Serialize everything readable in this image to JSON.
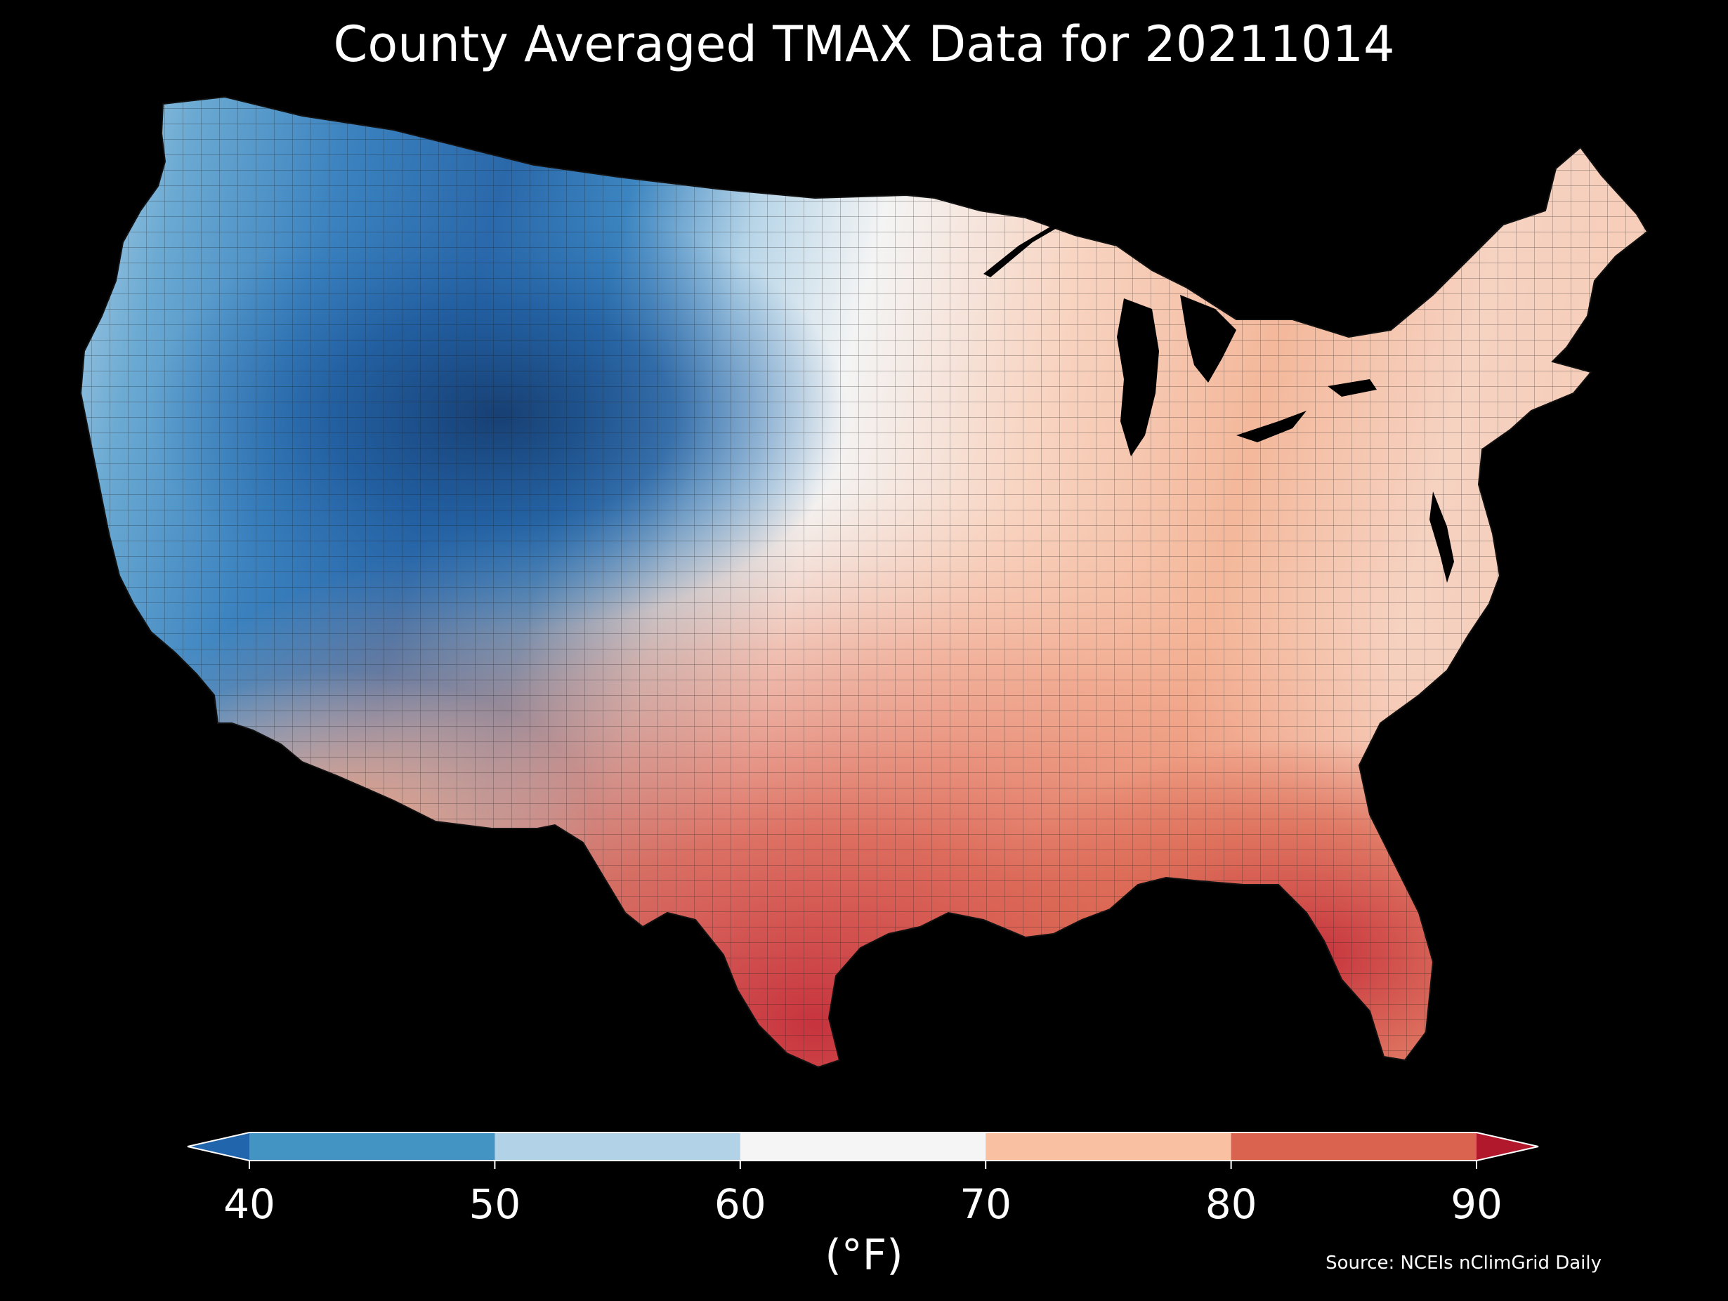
{
  "title": "County Averaged TMAX Data for 20211014",
  "colorbar": {
    "unit": "(°F)",
    "ticks": [
      "40",
      "50",
      "60",
      "70",
      "80",
      "90"
    ],
    "bins": [
      {
        "from": null,
        "to": 40,
        "color": "#2166ac"
      },
      {
        "from": 40,
        "to": 50,
        "color": "#4393c3"
      },
      {
        "from": 50,
        "to": 60,
        "color": "#b2d3e7"
      },
      {
        "from": 60,
        "to": 70,
        "color": "#f5f5f5"
      },
      {
        "from": 70,
        "to": 80,
        "color": "#f9c0a2"
      },
      {
        "from": 80,
        "to": 90,
        "color": "#d9634f"
      },
      {
        "from": 90,
        "to": null,
        "color": "#b2182b"
      }
    ],
    "extend": "both"
  },
  "source": "Source: NCEIs nClimGrid Daily",
  "map": {
    "region": "Contiguous United States",
    "variable": "TMAX",
    "date": "20211014",
    "background": "#000000",
    "border_color": "#1a1a1a"
  }
}
